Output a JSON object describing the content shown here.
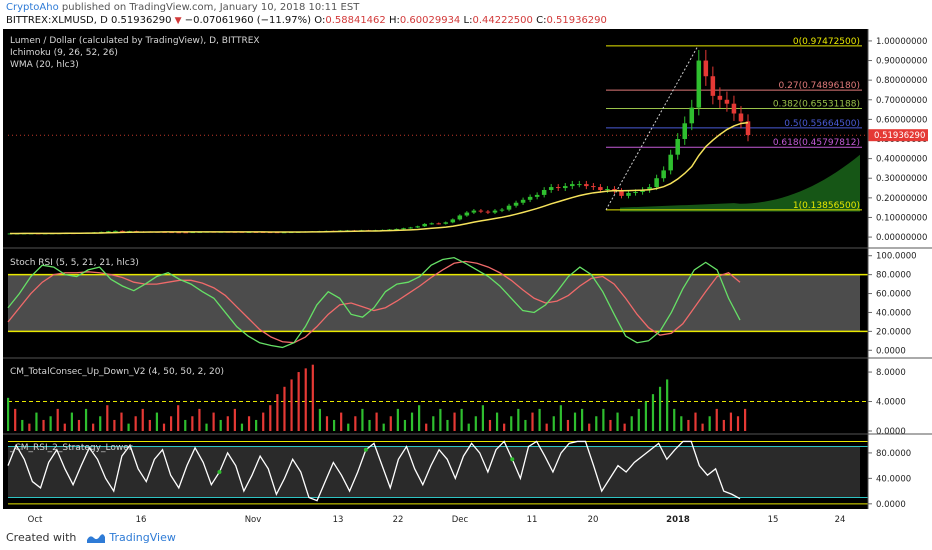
{
  "header": {
    "author": "CryptoAho",
    "published": "published on TradingView.com, January 10, 2018 10:11 EST",
    "symbol": "BITTREX:XLMUSD, D",
    "last": "0.51936290",
    "change": "−0.07061960 (−11.97%)",
    "open_label": "O:",
    "open": "0.58841462",
    "high_label": "H:",
    "high": "0.60029934",
    "low_label": "L:",
    "low": "0.44222500",
    "close_label": "C:",
    "close": "0.51936290"
  },
  "indicators": {
    "main_title": "Lumen / Dollar (calculated by TradingView), D, BITTREX",
    "ichimoku": "Ichimoku (9, 26, 52, 26)",
    "wma": "WMA (20, hlc3)",
    "stoch": "Stoch RSI (5, 5, 21, 21, hlc3)",
    "consec": "CM_TotalConsec_Up_Down_V2 (4, 50, 50, 2, 20)",
    "rsi2": "_CM_RSI_2_Strategy_Lower"
  },
  "colors": {
    "background": "#000000",
    "up": "#2fbf2f",
    "down": "#e53935",
    "wma": "#f5e25b",
    "stoch_k": "#66e066",
    "stoch_d": "#f06a6a",
    "band": "#e8e800",
    "fib_line": "#9a9a3a",
    "cloud": "#1f7a1f",
    "price_tag": "#e53935"
  },
  "chart_data": {
    "type": "candlestick",
    "x_ticks": [
      "Oct",
      "16",
      "Nov",
      "13",
      "22",
      "Dec",
      "11",
      "20",
      "2018",
      "15",
      "24"
    ],
    "price": {
      "y_ticks": [
        "1.00000000",
        "0.90000000",
        "0.80000000",
        "0.70000000",
        "0.60000000",
        "0.50000000",
        "0.40000000",
        "0.30000000",
        "0.20000000",
        "0.10000000",
        "0.00000000"
      ],
      "ylim": [
        -0.02,
        1.02
      ],
      "last_price_label": "0.51936290",
      "closes": [
        0.0185,
        0.0185,
        0.019,
        0.0193,
        0.019,
        0.0192,
        0.0195,
        0.02,
        0.0202,
        0.02,
        0.021,
        0.0215,
        0.0245,
        0.0265,
        0.0296,
        0.0317,
        0.0301,
        0.0304,
        0.0282,
        0.0275,
        0.0272,
        0.0264,
        0.0256,
        0.0248,
        0.0245,
        0.0243,
        0.0256,
        0.0263,
        0.0275,
        0.0271,
        0.0272,
        0.0269,
        0.0266,
        0.026,
        0.0262,
        0.0261,
        0.0255,
        0.025,
        0.0245,
        0.0247,
        0.0257,
        0.0264,
        0.0283,
        0.0291,
        0.0303,
        0.0315,
        0.0312,
        0.0334,
        0.0342,
        0.034,
        0.0348,
        0.0345,
        0.0351,
        0.0366,
        0.0388,
        0.0415,
        0.045,
        0.049,
        0.055,
        0.067,
        0.07,
        0.068,
        0.075,
        0.09,
        0.11,
        0.125,
        0.135,
        0.13,
        0.125,
        0.135,
        0.14,
        0.16,
        0.175,
        0.19,
        0.205,
        0.215,
        0.24,
        0.255,
        0.25,
        0.26,
        0.27,
        0.27,
        0.26,
        0.255,
        0.24,
        0.245,
        0.235,
        0.21,
        0.225,
        0.23,
        0.24,
        0.255,
        0.3,
        0.34,
        0.42,
        0.5,
        0.58,
        0.66,
        0.9,
        0.82,
        0.72,
        0.7,
        0.68,
        0.63,
        0.59,
        0.52
      ],
      "fib_levels": [
        {
          "ratio": "0",
          "value": 0.974725,
          "label": "0(0.97472500)"
        },
        {
          "ratio": "0.27",
          "value": 0.7489618,
          "label": "0.27(0.74896180)"
        },
        {
          "ratio": "0.382",
          "value": 0.65531188,
          "label": "0.382(0.65531188)"
        },
        {
          "ratio": "0.5",
          "value": 0.556645,
          "label": "0.5(0.55664500)"
        },
        {
          "ratio": "0.618",
          "value": 0.45797812,
          "label": "0.618(0.45797812)"
        },
        {
          "ratio": "1",
          "value": 0.138565,
          "label": "1(0.13856500)"
        }
      ]
    },
    "stoch_rsi": {
      "y_ticks": [
        "100.0000",
        "80.0000",
        "60.0000",
        "40.0000",
        "20.0000",
        "0.0000"
      ],
      "ylim": [
        -5,
        105
      ],
      "upper_band": 80,
      "lower_band": 20,
      "k": [
        45,
        60,
        78,
        90,
        88,
        80,
        78,
        85,
        88,
        75,
        68,
        63,
        70,
        78,
        82,
        75,
        70,
        62,
        55,
        40,
        25,
        15,
        8,
        5,
        3,
        8,
        25,
        48,
        62,
        55,
        38,
        35,
        45,
        62,
        70,
        72,
        78,
        90,
        96,
        98,
        92,
        85,
        78,
        68,
        55,
        42,
        40,
        48,
        62,
        78,
        88,
        80,
        62,
        38,
        15,
        8,
        10,
        20,
        40,
        65,
        85,
        93,
        85,
        55,
        32
      ],
      "d": [
        30,
        45,
        60,
        72,
        80,
        82,
        82,
        83,
        82,
        80,
        77,
        72,
        70,
        70,
        72,
        74,
        74,
        71,
        66,
        58,
        46,
        34,
        22,
        14,
        9,
        8,
        14,
        25,
        38,
        48,
        50,
        46,
        42,
        45,
        52,
        60,
        68,
        77,
        85,
        92,
        94,
        92,
        88,
        82,
        74,
        64,
        55,
        50,
        52,
        58,
        68,
        76,
        78,
        70,
        55,
        38,
        24,
        16,
        18,
        28,
        45,
        62,
        78,
        82,
        72
      ]
    },
    "consec": {
      "y_ticks": [
        "8.0000",
        "4.0000",
        "0.0000"
      ],
      "ylim": [
        0,
        9.5
      ],
      "threshold": 4,
      "values": [
        4.5,
        3,
        1.5,
        1,
        2.5,
        1.5,
        2,
        3,
        1,
        2.5,
        1.5,
        3,
        1,
        2,
        3.5,
        1.5,
        2.5,
        1,
        2,
        3,
        1.5,
        2.5,
        1,
        2,
        3.5,
        1.5,
        2,
        3,
        1,
        2.5,
        1.5,
        2,
        3,
        1,
        2,
        1.5,
        2.5,
        3.5,
        5,
        6,
        7,
        8,
        8.5,
        9,
        3,
        2,
        1.5,
        2.5,
        1,
        2,
        3,
        1.5,
        2.5,
        1,
        2,
        3,
        1.5,
        2.5,
        3.5,
        1,
        2,
        3,
        1.5,
        2.5,
        3,
        1,
        2,
        3.5,
        1.5,
        2.5,
        1,
        2,
        3,
        1.5,
        2.5,
        3,
        1,
        2,
        3.5,
        1.5,
        2.5,
        3,
        1,
        2,
        3,
        1.5,
        2.5,
        1,
        2,
        3,
        4,
        5,
        6,
        7,
        3,
        2,
        1.5,
        2.5,
        1,
        2,
        3,
        1.5,
        2.5,
        2,
        3
      ],
      "up": [
        1,
        0,
        1,
        0,
        1,
        0,
        1,
        0,
        0,
        1,
        0,
        1,
        0,
        1,
        0,
        0,
        0,
        1,
        0,
        0,
        0,
        1,
        0,
        0,
        0,
        1,
        0,
        0,
        1,
        0,
        1,
        0,
        0,
        1,
        0,
        1,
        0,
        0,
        0,
        0,
        0,
        0,
        0,
        0,
        1,
        0,
        1,
        0,
        1,
        0,
        1,
        1,
        0,
        1,
        0,
        1,
        1,
        1,
        1,
        0,
        1,
        1,
        1,
        0,
        1,
        1,
        1,
        1,
        0,
        1,
        0,
        1,
        1,
        1,
        0,
        1,
        0,
        1,
        1,
        0,
        1,
        1,
        0,
        1,
        1,
        0,
        1,
        0,
        1,
        1,
        1,
        1,
        1,
        1,
        1,
        1,
        0,
        0,
        0,
        1,
        0,
        0,
        0,
        0,
        0
      ]
    },
    "rsi2": {
      "y_ticks": [
        "80.0000",
        "40.0000",
        "0.0000"
      ],
      "ylim": [
        -5,
        105
      ],
      "upper_band": 90,
      "lower_band": 10,
      "values": [
        60,
        92,
        70,
        35,
        25,
        65,
        85,
        55,
        30,
        60,
        88,
        70,
        40,
        20,
        75,
        92,
        55,
        35,
        70,
        85,
        45,
        25,
        60,
        88,
        65,
        30,
        50,
        80,
        60,
        20,
        45,
        75,
        55,
        15,
        40,
        70,
        50,
        10,
        5,
        35,
        65,
        45,
        20,
        50,
        85,
        95,
        60,
        25,
        70,
        90,
        55,
        30,
        60,
        85,
        70,
        40,
        75,
        95,
        80,
        50,
        85,
        98,
        70,
        40,
        90,
        98,
        75,
        50,
        80,
        95,
        98,
        98,
        60,
        20,
        40,
        60,
        50,
        65,
        75,
        85,
        95,
        70,
        85,
        98,
        98,
        60,
        45,
        55,
        20,
        15,
        8
      ],
      "dots": [
        26,
        44,
        62
      ]
    }
  }
}
